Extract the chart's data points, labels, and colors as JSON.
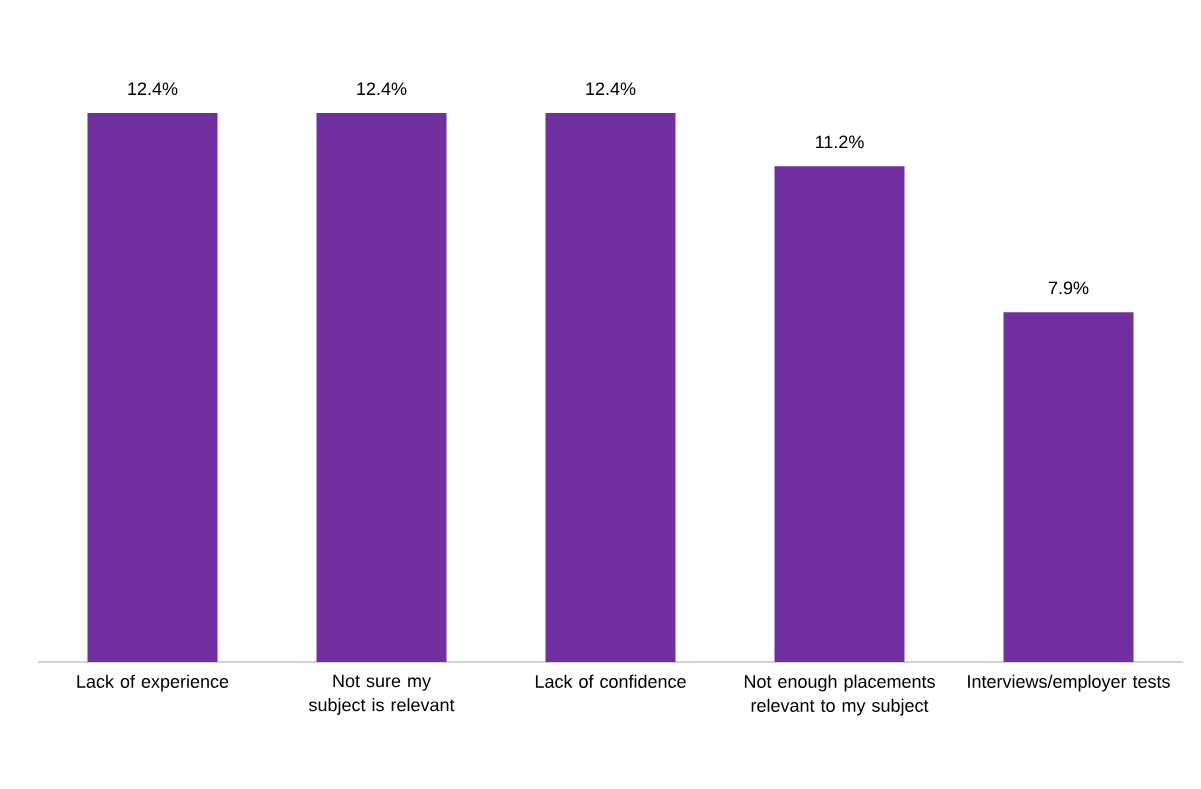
{
  "chart_data": {
    "type": "bar",
    "categories": [
      "Lack of experience",
      "Not sure my subject is relevant",
      "Lack of confidence",
      "Not enough placements relevant to my subject",
      "Interviews/employer tests"
    ],
    "values": [
      12.4,
      12.4,
      12.4,
      11.2,
      7.9
    ],
    "value_labels": [
      "12.4%",
      "12.4%",
      "12.4%",
      "11.2%",
      "7.9%"
    ],
    "color": "#7030a0"
  }
}
